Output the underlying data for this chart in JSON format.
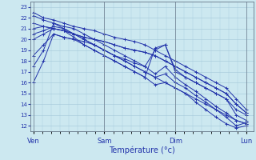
{
  "xlabel": "Température (°c)",
  "background_color": "#cce8f0",
  "grid_color": "#aaccdd",
  "line_color": "#2233aa",
  "ylim": [
    11.5,
    23.5
  ],
  "yticks": [
    12,
    13,
    14,
    15,
    16,
    17,
    18,
    19,
    20,
    21,
    22,
    23
  ],
  "day_labels": [
    "Ven",
    "Sam",
    "Dim",
    "Lun"
  ],
  "day_positions": [
    0,
    80,
    160,
    240
  ],
  "xlim": [
    -3,
    248
  ],
  "series": [
    [
      22.2,
      21.8,
      21.5,
      21.0,
      20.5,
      20.0,
      19.5,
      19.0,
      18.5,
      18.0,
      17.5,
      17.0,
      16.5,
      16.0,
      15.5,
      15.0,
      14.5,
      14.0,
      13.5,
      13.0,
      12.5,
      12.2
    ],
    [
      22.5,
      22.0,
      21.8,
      21.5,
      21.2,
      21.0,
      20.8,
      20.5,
      20.2,
      20.0,
      19.8,
      19.5,
      19.0,
      18.5,
      18.0,
      17.5,
      17.0,
      16.5,
      16.0,
      15.5,
      14.5,
      13.5
    ],
    [
      21.5,
      21.2,
      21.0,
      20.8,
      20.5,
      20.2,
      20.0,
      19.8,
      19.5,
      19.2,
      19.0,
      18.8,
      18.5,
      18.0,
      17.5,
      17.0,
      16.5,
      16.0,
      15.5,
      15.0,
      14.0,
      13.2
    ],
    [
      20.5,
      20.8,
      21.2,
      21.0,
      20.5,
      20.0,
      19.5,
      19.0,
      18.5,
      18.2,
      17.8,
      17.5,
      19.0,
      19.5,
      17.0,
      16.5,
      16.0,
      15.5,
      15.0,
      14.5,
      13.5,
      13.0
    ],
    [
      20.0,
      20.5,
      21.0,
      20.8,
      20.2,
      19.5,
      19.0,
      18.5,
      18.0,
      17.5,
      17.0,
      16.5,
      19.2,
      19.5,
      17.2,
      16.5,
      16.0,
      15.5,
      15.0,
      14.5,
      13.0,
      12.5
    ],
    [
      21.0,
      21.2,
      21.0,
      20.8,
      20.5,
      20.2,
      20.0,
      19.8,
      19.5,
      19.2,
      19.0,
      18.8,
      18.5,
      18.0,
      17.5,
      17.0,
      16.5,
      16.0,
      15.5,
      15.0,
      14.0,
      13.2
    ],
    [
      17.5,
      19.0,
      21.5,
      21.2,
      21.0,
      20.5,
      20.0,
      19.5,
      19.0,
      18.5,
      18.0,
      17.5,
      16.8,
      17.5,
      16.5,
      15.8,
      15.2,
      14.5,
      13.8,
      13.2,
      12.5,
      12.2
    ],
    [
      16.0,
      18.0,
      20.5,
      20.2,
      20.0,
      19.5,
      19.0,
      18.5,
      18.0,
      17.5,
      17.0,
      16.5,
      15.8,
      16.0,
      15.5,
      15.0,
      14.2,
      13.5,
      12.8,
      12.2,
      11.8,
      12.0
    ],
    [
      18.5,
      19.5,
      20.5,
      20.2,
      20.0,
      19.8,
      19.5,
      19.0,
      18.5,
      18.0,
      17.5,
      17.0,
      16.5,
      16.8,
      16.0,
      15.5,
      14.8,
      14.2,
      13.5,
      12.8,
      12.0,
      12.3
    ]
  ],
  "marker_every": [
    0,
    2,
    4,
    6,
    8,
    10,
    12,
    14,
    16,
    18,
    20,
    21
  ]
}
